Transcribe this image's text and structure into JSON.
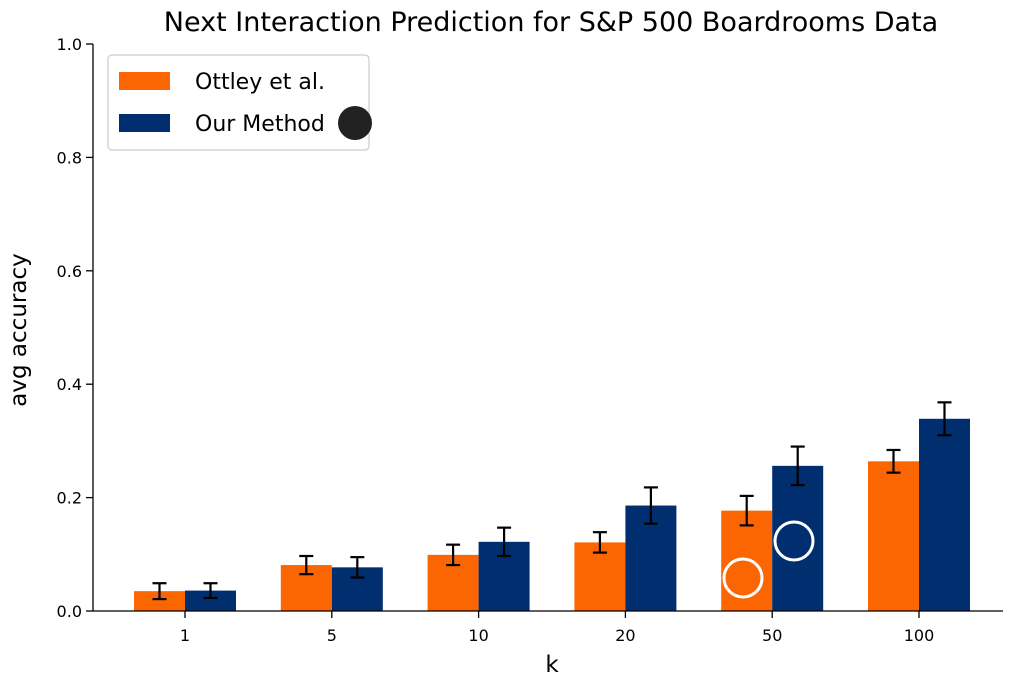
{
  "chart_data": {
    "type": "bar",
    "title": "Next Interaction Prediction for S&P 500 Boardrooms Data",
    "xlabel": "k",
    "ylabel": "avg accuracy",
    "categories": [
      "1",
      "5",
      "10",
      "20",
      "50",
      "100"
    ],
    "ylim": [
      0,
      1.0
    ],
    "yticks": [
      "0.0",
      "0.2",
      "0.4",
      "0.6",
      "0.8",
      "1.0"
    ],
    "grid": false,
    "legend_position": "top-left",
    "series": [
      {
        "name": "Ottley et al.",
        "color": "#fc6602",
        "values": [
          0.035,
          0.081,
          0.099,
          0.121,
          0.177,
          0.264
        ],
        "error": [
          0.014,
          0.016,
          0.018,
          0.018,
          0.026,
          0.02
        ]
      },
      {
        "name": "Our Method",
        "color": "#002e6e",
        "values": [
          0.036,
          0.077,
          0.122,
          0.186,
          0.256,
          0.339
        ],
        "error": [
          0.013,
          0.018,
          0.025,
          0.032,
          0.034,
          0.029
        ]
      }
    ]
  },
  "overlay": {
    "cursor_marker": "cursor-dot",
    "click_markers": [
      "click-ring",
      "click-ring"
    ]
  }
}
